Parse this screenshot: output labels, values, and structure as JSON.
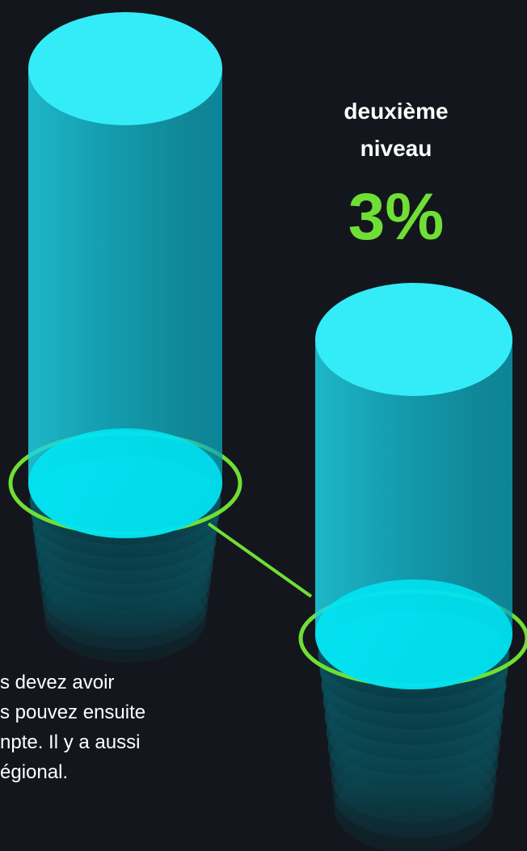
{
  "heading": {
    "label_lines": [
      "deuxième",
      "niveau"
    ],
    "value": "3%"
  },
  "paragraph": {
    "lines": [
      "s devez avoir",
      "s pouvez ensuite",
      "npte. Il y a aussi",
      "égional."
    ]
  }
}
